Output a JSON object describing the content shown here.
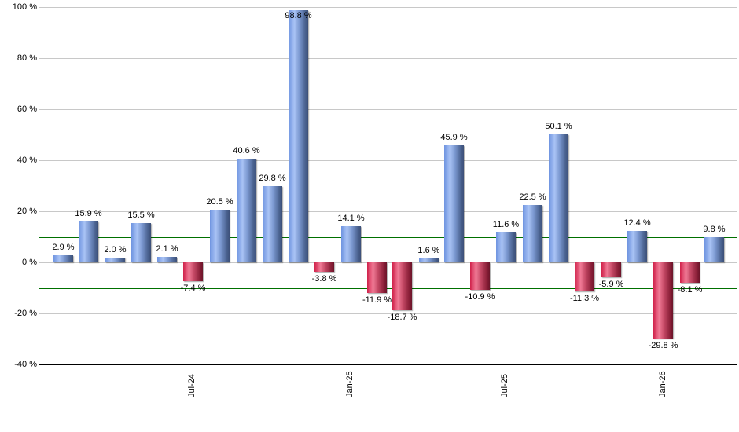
{
  "chart_data": {
    "type": "bar",
    "title": "",
    "xlabel": "",
    "ylabel": "",
    "ylim": [
      -40,
      100
    ],
    "yticks": [
      "100 %",
      "80 %",
      "60 %",
      "40 %",
      "20 %",
      "0 %",
      "-20 %",
      "-40 %"
    ],
    "ytick_values": [
      100,
      80,
      60,
      40,
      20,
      0,
      -20,
      -40
    ],
    "xticks": [
      "Jul-24",
      "Jan-25",
      "Jul-25",
      "Jan-26"
    ],
    "grid": true,
    "reference_lines": [
      10,
      -10
    ],
    "reference_line_color": "#007000",
    "positive_color": "#7b98d0",
    "negative_color": "#c44864",
    "values": [
      2.9,
      15.9,
      2.0,
      15.5,
      2.1,
      -7.4,
      20.5,
      40.6,
      29.8,
      98.8,
      -3.8,
      14.1,
      -11.9,
      -18.7,
      1.6,
      45.9,
      -10.9,
      11.6,
      22.5,
      50.1,
      -11.3,
      -5.9,
      12.4,
      -29.8,
      -8.1,
      9.8
    ],
    "labels": [
      "2.9 %",
      "15.9 %",
      "2.0 %",
      "15.5 %",
      "2.1 %",
      "-7.4 %",
      "20.5 %",
      "40.6 %",
      "29.8 %",
      "98.8 %",
      "-3.8 %",
      "14.1 %",
      "-11.9 %",
      "-18.7 %",
      "1.6 %",
      "45.9 %",
      "-10.9 %",
      "11.6 %",
      "22.5 %",
      "50.1 %",
      "-11.3 %",
      "-5.9 %",
      "12.4 %",
      "-29.8 %",
      "-8.1 %",
      "9.8 %"
    ]
  }
}
